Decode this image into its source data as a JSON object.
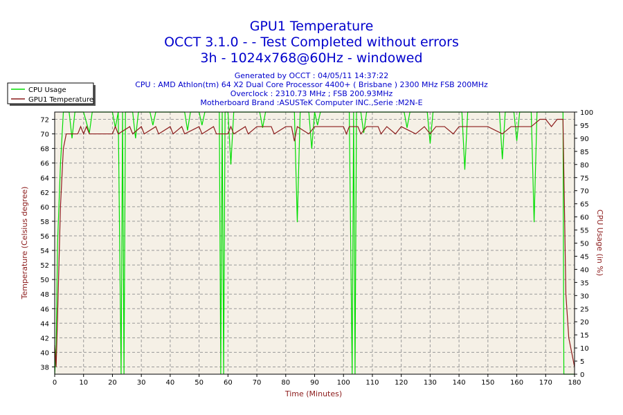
{
  "header": {
    "title": "GPU1 Temperature",
    "subtitle1": "OCCT 3.1.0 -  - Test Completed without errors",
    "subtitle2": "3h - 1024x768@60Hz - windowed",
    "info": [
      "Generated by OCCT : 04/05/11 14:37:22",
      "CPU : AMD Athlon(tm) 64 X2 Dual Core Processor 4400+ ( Brisbane ) 2300 MHz FSB 200MHz",
      "Overclock : 2310.73 MHz ; FSB 200.93MHz",
      "Motherboard Brand :ASUSTeK Computer INC.,Serie :M2N-E"
    ]
  },
  "colors": {
    "cpu_usage": "#00dd00",
    "gpu_temp": "#8b1a1a",
    "plot_bg": "#f5f0e6",
    "axis_label": "#8b1a1a",
    "title": "#0000cc"
  },
  "chart_data": {
    "type": "line",
    "xlabel": "Time (Minutes)",
    "ylabel_left": "Temperature (Celsius degree)",
    "ylabel_right": "CPU Usage (in %)",
    "xlim": [
      0,
      180
    ],
    "ylim_left": [
      37,
      73
    ],
    "ylim_right": [
      0,
      100
    ],
    "x_ticks": [
      0,
      10,
      20,
      30,
      40,
      50,
      60,
      70,
      80,
      90,
      100,
      110,
      120,
      130,
      140,
      150,
      160,
      170,
      180
    ],
    "y_ticks_left": [
      38,
      40,
      42,
      44,
      46,
      48,
      50,
      52,
      54,
      56,
      58,
      60,
      62,
      64,
      66,
      68,
      70,
      72
    ],
    "y_ticks_right": [
      0,
      5,
      10,
      15,
      20,
      25,
      30,
      35,
      40,
      45,
      50,
      55,
      60,
      65,
      70,
      75,
      80,
      85,
      90,
      95,
      100
    ],
    "grid": true,
    "legend_position": "top-left",
    "series": [
      {
        "name": "CPU Usage",
        "axis": "right",
        "points": [
          [
            0,
            0
          ],
          [
            0.5,
            10
          ],
          [
            1,
            50
          ],
          [
            2,
            80
          ],
          [
            3,
            100
          ],
          [
            5,
            100
          ],
          [
            6,
            90
          ],
          [
            7,
            100
          ],
          [
            10,
            100
          ],
          [
            12,
            92
          ],
          [
            13,
            100
          ],
          [
            20,
            100
          ],
          [
            21,
            94
          ],
          [
            22,
            100
          ],
          [
            23,
            0
          ],
          [
            23.5,
            100
          ],
          [
            24,
            0
          ],
          [
            24.5,
            100
          ],
          [
            27,
            100
          ],
          [
            28,
            90
          ],
          [
            29,
            100
          ],
          [
            33,
            100
          ],
          [
            34,
            95
          ],
          [
            35,
            100
          ],
          [
            45,
            100
          ],
          [
            46,
            93
          ],
          [
            47,
            100
          ],
          [
            50,
            100
          ],
          [
            51,
            95
          ],
          [
            52,
            100
          ],
          [
            57,
            100
          ],
          [
            57.5,
            0
          ],
          [
            58,
            100
          ],
          [
            58.5,
            0
          ],
          [
            59,
            100
          ],
          [
            60,
            100
          ],
          [
            61,
            80
          ],
          [
            62,
            100
          ],
          [
            71,
            100
          ],
          [
            72,
            94
          ],
          [
            73,
            100
          ],
          [
            83,
            100
          ],
          [
            84,
            58
          ],
          [
            85,
            100
          ],
          [
            88,
            100
          ],
          [
            89,
            86
          ],
          [
            90,
            100
          ],
          [
            91,
            95
          ],
          [
            92,
            100
          ],
          [
            102,
            100
          ],
          [
            103,
            0
          ],
          [
            103.5,
            100
          ],
          [
            104,
            0
          ],
          [
            104.5,
            100
          ],
          [
            106,
            100
          ],
          [
            107,
            92
          ],
          [
            108,
            100
          ],
          [
            121,
            100
          ],
          [
            122,
            94
          ],
          [
            123,
            100
          ],
          [
            129,
            100
          ],
          [
            130,
            88
          ],
          [
            131,
            100
          ],
          [
            141,
            100
          ],
          [
            142,
            78
          ],
          [
            143,
            100
          ],
          [
            154,
            100
          ],
          [
            155,
            82
          ],
          [
            156,
            100
          ],
          [
            159,
            100
          ],
          [
            160,
            89
          ],
          [
            161,
            100
          ],
          [
            165,
            100
          ],
          [
            166,
            58
          ],
          [
            167,
            100
          ],
          [
            176,
            100
          ],
          [
            176.3,
            0
          ],
          [
            177,
            0
          ],
          [
            180,
            0
          ]
        ]
      },
      {
        "name": "GPU1 Temperature",
        "axis": "left",
        "points": [
          [
            0,
            41
          ],
          [
            0.5,
            38
          ],
          [
            1,
            45
          ],
          [
            2,
            60
          ],
          [
            3,
            68
          ],
          [
            4,
            70
          ],
          [
            8,
            70
          ],
          [
            9,
            71
          ],
          [
            10,
            70
          ],
          [
            11,
            71
          ],
          [
            12,
            70
          ],
          [
            20,
            70
          ],
          [
            21,
            71
          ],
          [
            22,
            70
          ],
          [
            26,
            71
          ],
          [
            27,
            70
          ],
          [
            30,
            71
          ],
          [
            31,
            70
          ],
          [
            35,
            71
          ],
          [
            36,
            70
          ],
          [
            40,
            71
          ],
          [
            41,
            70
          ],
          [
            44,
            71
          ],
          [
            45,
            70
          ],
          [
            50,
            71
          ],
          [
            51,
            70
          ],
          [
            55,
            71
          ],
          [
            56,
            70
          ],
          [
            60,
            70
          ],
          [
            61,
            71
          ],
          [
            62,
            70
          ],
          [
            66,
            71
          ],
          [
            67,
            70
          ],
          [
            70,
            71
          ],
          [
            71,
            71
          ],
          [
            75,
            71
          ],
          [
            76,
            70
          ],
          [
            80,
            71
          ],
          [
            82,
            71
          ],
          [
            83,
            69
          ],
          [
            84,
            71
          ],
          [
            88,
            70
          ],
          [
            90,
            71
          ],
          [
            95,
            71
          ],
          [
            98,
            71
          ],
          [
            100,
            71
          ],
          [
            101,
            70
          ],
          [
            102,
            71
          ],
          [
            105,
            71
          ],
          [
            106,
            70
          ],
          [
            108,
            71
          ],
          [
            112,
            71
          ],
          [
            113,
            70
          ],
          [
            115,
            71
          ],
          [
            118,
            70
          ],
          [
            120,
            71
          ],
          [
            125,
            70
          ],
          [
            128,
            71
          ],
          [
            130,
            70
          ],
          [
            132,
            71
          ],
          [
            135,
            71
          ],
          [
            138,
            70
          ],
          [
            140,
            71
          ],
          [
            145,
            71
          ],
          [
            148,
            71
          ],
          [
            150,
            71
          ],
          [
            155,
            70
          ],
          [
            158,
            71
          ],
          [
            160,
            71
          ],
          [
            163,
            71
          ],
          [
            165,
            71
          ],
          [
            168,
            72
          ],
          [
            170,
            72
          ],
          [
            172,
            71
          ],
          [
            174,
            72
          ],
          [
            176,
            72
          ],
          [
            176.5,
            60
          ],
          [
            177,
            48
          ],
          [
            178,
            42
          ],
          [
            179,
            40
          ],
          [
            180,
            38
          ]
        ]
      }
    ]
  }
}
